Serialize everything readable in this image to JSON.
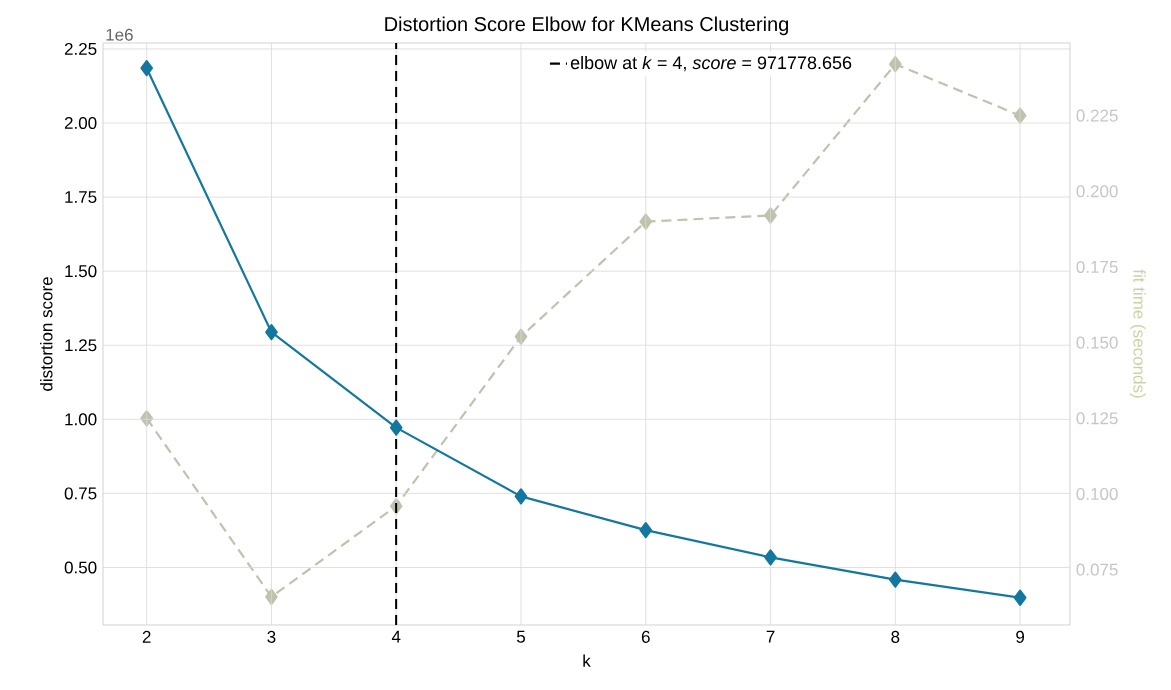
{
  "chart_data": {
    "type": "line",
    "title": "Distortion Score Elbow for KMeans Clustering",
    "xlabel": "k",
    "ylabel": "distortion score",
    "y2label": "fit time (seconds)",
    "x": [
      2,
      3,
      4,
      5,
      6,
      7,
      8,
      9
    ],
    "series": [
      {
        "color": "#13779f",
        "values": [
          2.185,
          1.294,
          0.972,
          0.74,
          0.626,
          0.534,
          0.459,
          0.398
        ]
      },
      {
        "color": "#bfc3ad",
        "axis": "y2",
        "line_style": "dashed",
        "values": [
          0.125,
          0.066,
          0.096,
          0.152,
          0.19,
          0.192,
          0.242,
          0.225
        ]
      }
    ],
    "ref_lines": [
      {
        "axis": "x",
        "value": 4,
        "label": "elbow at *k* = 4, *score* = 971778.656",
        "color": "#000000",
        "line_style": "dashed"
      }
    ],
    "annotations": [
      "1e6"
    ],
    "xlim": [
      1.65,
      9.4
    ],
    "ylim": [
      0.306,
      2.27
    ],
    "y2lim": [
      0.0567,
      0.249
    ],
    "xticks": [
      2,
      3,
      4,
      5,
      6,
      7,
      8,
      9
    ],
    "yticks": [
      {
        "value": 0.5,
        "label": "0.50"
      },
      {
        "value": 0.75,
        "label": "0.75"
      },
      {
        "value": 1.0,
        "label": "1.00"
      },
      {
        "value": 1.25,
        "label": "1.25"
      },
      {
        "value": 1.5,
        "label": "1.50"
      },
      {
        "value": 1.75,
        "label": "1.75"
      },
      {
        "value": 2.0,
        "label": "2.00"
      },
      {
        "value": 2.25,
        "label": "2.25"
      }
    ],
    "y2ticks": [
      {
        "value": 0.075,
        "label": "0.075"
      },
      {
        "value": 0.1,
        "label": "0.100"
      },
      {
        "value": 0.125,
        "label": "0.125"
      },
      {
        "value": 0.15,
        "label": "0.150"
      },
      {
        "value": 0.175,
        "label": "0.175"
      },
      {
        "value": 0.2,
        "label": "0.200"
      },
      {
        "value": 0.225,
        "label": "0.225"
      }
    ],
    "grid": true,
    "legend": "top right",
    "marker": "diamond"
  }
}
